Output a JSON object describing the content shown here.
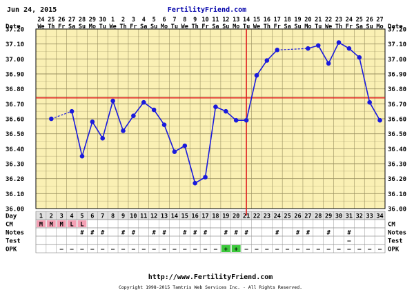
{
  "date_label": "Jun 24, 2015",
  "brand": "FertilityFriend.com",
  "footer": {
    "url": "http://www.FertilityFriend.com",
    "copyright": "Copyright 1998-2015 Tamtris Web Services Inc. - All Rights Reserved."
  },
  "row_labels": {
    "date": "Date",
    "day": "Day",
    "cm": "CM",
    "notes": "Notes",
    "test": "Test",
    "opk": "OPK"
  },
  "colors": {
    "grid_bg": "#faf0b4",
    "line": "#1a1adc",
    "coverline": "#e02020",
    "ovulation_line": "#e02020",
    "day_row_bg": "#e0e0e0",
    "cm_fill": "#f4a0b4",
    "opk_fill": "#3cc83c"
  },
  "chart_data": {
    "type": "line",
    "title": "",
    "xlabel": "Day",
    "ylabel": "",
    "ylim": [
      36.0,
      37.2
    ],
    "y_ticks": [
      "36.00",
      "36.10",
      "36.20",
      "36.30",
      "36.40",
      "36.50",
      "36.60",
      "36.70",
      "36.80",
      "36.90",
      "37.00",
      "37.10",
      "37.20"
    ],
    "dates": [
      "24",
      "25",
      "26",
      "27",
      "28",
      "29",
      "30",
      "1",
      "2",
      "3",
      "4",
      "5",
      "6",
      "7",
      "8",
      "9",
      "10",
      "11",
      "12",
      "13",
      "14",
      "15",
      "16",
      "17",
      "18",
      "19",
      "20",
      "21",
      "22",
      "23",
      "24",
      "25",
      "26",
      "27"
    ],
    "weekdays": [
      "We",
      "Th",
      "Fr",
      "Sa",
      "Su",
      "Mo",
      "Tu",
      "We",
      "Th",
      "Fr",
      "Sa",
      "Su",
      "Mo",
      "Tu",
      "We",
      "Th",
      "Fr",
      "Sa",
      "Su",
      "Mo",
      "Tu",
      "We",
      "Th",
      "Fr",
      "Sa",
      "Su",
      "Mo",
      "Tu",
      "We",
      "Th",
      "Fr",
      "Sa",
      "Su",
      "Mo"
    ],
    "days": [
      1,
      2,
      3,
      4,
      5,
      6,
      7,
      8,
      9,
      10,
      11,
      12,
      13,
      14,
      15,
      16,
      17,
      18,
      19,
      20,
      21,
      22,
      23,
      24,
      25,
      26,
      27,
      28,
      29,
      30,
      31,
      32,
      33,
      34
    ],
    "series": [
      {
        "values": [
          null,
          36.6,
          null,
          36.65,
          36.35,
          36.58,
          36.47,
          36.72,
          36.52,
          36.62,
          36.71,
          36.66,
          36.56,
          36.38,
          36.42,
          36.17,
          36.21,
          36.68,
          36.65,
          36.59,
          36.59,
          36.89,
          36.99,
          37.06,
          null,
          null,
          37.07,
          37.09,
          36.97,
          37.11,
          37.07,
          37.01,
          36.71,
          36.59
        ]
      }
    ],
    "coverline": 36.74,
    "ovulation_day": 21,
    "cm": [
      "M",
      "M",
      "M",
      "L",
      "L",
      "",
      "",
      "",
      "",
      "",
      "",
      "",
      "",
      "",
      "",
      "",
      "",
      "",
      "",
      "",
      "",
      "",
      "",
      "",
      "",
      "",
      "",
      "",
      "",
      "",
      "",
      "",
      "",
      ""
    ],
    "notes": [
      "",
      "",
      "",
      "",
      "#",
      "#",
      "#",
      "",
      "#",
      "#",
      "",
      "#",
      "#",
      "",
      "#",
      "#",
      "#",
      "",
      "#",
      "#",
      "#",
      "",
      "",
      "#",
      "",
      "#",
      "#",
      "",
      "#",
      "",
      "#",
      "",
      "",
      ""
    ],
    "test": [
      "",
      "",
      "",
      "",
      "",
      "",
      "",
      "",
      "",
      "",
      "",
      "",
      "",
      "",
      "",
      "",
      "",
      "",
      "",
      "",
      "",
      "",
      "",
      "",
      "",
      "",
      "",
      "",
      "",
      "",
      "–",
      "",
      "",
      ""
    ],
    "opk": [
      "",
      "",
      "–",
      "–",
      "–",
      "–",
      "–",
      "–",
      "–",
      "–",
      "–",
      "–",
      "–",
      "–",
      "–",
      "–",
      "–",
      "–",
      "+",
      "+",
      "–",
      "–",
      "–",
      "–",
      "–",
      "–",
      "–",
      "–",
      "–",
      "–",
      "–",
      "–",
      "–",
      "–"
    ]
  }
}
